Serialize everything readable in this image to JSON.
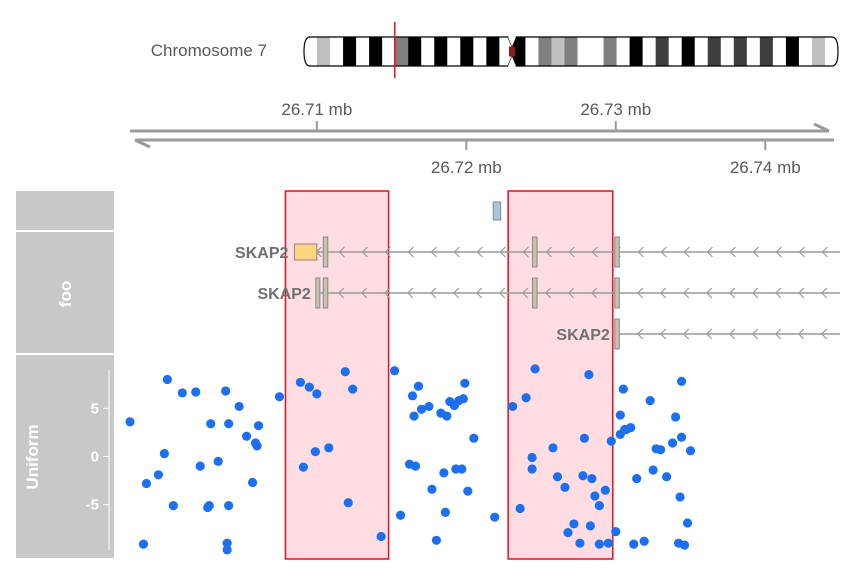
{
  "ideogram": {
    "label": "Chromosome 7",
    "bands": [
      "#ffffff",
      "#bfbfbf",
      "#ffffff",
      "#000000",
      "#ffffff",
      "#000000",
      "#ffffff",
      "#7f7f7f",
      "#000000",
      "#ffffff",
      "#000000",
      "#ffffff",
      "#000000",
      "#ffffff",
      "#000000",
      "#ffffff",
      "#000000",
      "#ffffff",
      "#7f7f7f",
      "#c0c0c0",
      "#7f7f7f",
      "#ffffff",
      "#ffffff",
      "#7f7f7f",
      "#ffffff",
      "#000000",
      "#ffffff",
      "#3f3f3f",
      "#ffffff",
      "#000000",
      "#ffffff",
      "#3f3f3f",
      "#ffffff",
      "#3f3f3f",
      "#ffffff",
      "#3f3f3f",
      "#ffffff",
      "#000000",
      "#ffffff",
      "#bfbfbf",
      "#ffffff"
    ],
    "centromere_color": "#8b1a1a",
    "marker_color": "#e3101c",
    "marker_position_fraction": 0.17
  },
  "axis": {
    "range_mb": [
      26.6975,
      26.745
    ],
    "top_ticks": [
      {
        "value": 26.71,
        "label": "26.71 mb"
      },
      {
        "value": 26.73,
        "label": "26.73 mb"
      }
    ],
    "bottom_ticks": [
      {
        "value": 26.72,
        "label": "26.72 mb"
      },
      {
        "value": 26.74,
        "label": "26.74 mb"
      }
    ],
    "color": "#9a9a9a"
  },
  "highlights": [
    {
      "from": 26.7079,
      "to": 26.7148
    },
    {
      "from": 26.7228,
      "to": 26.7298
    }
  ],
  "highlight_style": {
    "fill": "#ffdde3",
    "stroke": "#e3101c"
  },
  "panels": [
    {
      "title": ""
    },
    {
      "title": "foo"
    },
    {
      "title": "Uniform"
    }
  ],
  "gene_track": {
    "line_color": "#9a9a9a",
    "exon_color": "#c8c0b0",
    "utr_color": "#ffd47e",
    "small_feature": {
      "from": 26.722,
      "to": 26.7225,
      "color": "#a9c4dd"
    },
    "transcripts": [
      {
        "label": "SKAP2",
        "start": 26.7085,
        "end": 26.745,
        "exons": [
          [
            26.7105,
            26.7108
          ],
          [
            26.7245,
            26.7248
          ],
          [
            26.73,
            26.7303
          ]
        ],
        "utrs": [
          [
            26.7085,
            26.71
          ]
        ]
      },
      {
        "label": "SKAP2",
        "start": 26.71,
        "end": 26.745,
        "exons": [
          [
            26.71,
            26.7102
          ],
          [
            26.7105,
            26.7108
          ],
          [
            26.7245,
            26.7248
          ],
          [
            26.73,
            26.7303
          ]
        ],
        "utrs": []
      },
      {
        "label": "SKAP2",
        "start": 26.73,
        "end": 26.745,
        "exons": [
          [
            26.73,
            26.7303
          ]
        ],
        "utrs": []
      }
    ]
  },
  "chart_data": {
    "type": "scatter",
    "title": "",
    "xlabel": "",
    "ylabel": "Uniform",
    "y_ticks": [
      -5,
      0,
      5
    ],
    "ylim": [
      -9.5,
      9.5
    ],
    "point_color": "#1d6ff2",
    "points": [
      {
        "x": 26.6975,
        "y": 3.6
      },
      {
        "x": 26.6984,
        "y": -9.1
      },
      {
        "x": 26.6986,
        "y": -2.8
      },
      {
        "x": 26.6994,
        "y": -1.9
      },
      {
        "x": 26.6998,
        "y": 0.3
      },
      {
        "x": 26.7,
        "y": 8.0
      },
      {
        "x": 26.7004,
        "y": -5.1
      },
      {
        "x": 26.701,
        "y": 6.6
      },
      {
        "x": 26.7019,
        "y": 6.7
      },
      {
        "x": 26.7022,
        "y": -1.0
      },
      {
        "x": 26.7027,
        "y": -5.3
      },
      {
        "x": 26.7028,
        "y": -5.1
      },
      {
        "x": 26.7029,
        "y": 3.4
      },
      {
        "x": 26.7034,
        "y": -0.5
      },
      {
        "x": 26.7039,
        "y": 6.8
      },
      {
        "x": 26.704,
        "y": -9.0
      },
      {
        "x": 26.704,
        "y": -9.7
      },
      {
        "x": 26.7041,
        "y": 3.4
      },
      {
        "x": 26.7041,
        "y": -5.1
      },
      {
        "x": 26.7048,
        "y": 5.2
      },
      {
        "x": 26.7053,
        "y": 2.1
      },
      {
        "x": 26.7057,
        "y": -2.7
      },
      {
        "x": 26.7059,
        "y": 1.4
      },
      {
        "x": 26.706,
        "y": 1.1
      },
      {
        "x": 26.7061,
        "y": 3.2
      },
      {
        "x": 26.7075,
        "y": 6.2
      },
      {
        "x": 26.7089,
        "y": 7.7
      },
      {
        "x": 26.7091,
        "y": -1.1
      },
      {
        "x": 26.7095,
        "y": 7.2
      },
      {
        "x": 26.7099,
        "y": 0.5
      },
      {
        "x": 26.71,
        "y": 6.5
      },
      {
        "x": 26.7108,
        "y": 0.9
      },
      {
        "x": 26.7119,
        "y": 8.8
      },
      {
        "x": 26.7121,
        "y": -4.8
      },
      {
        "x": 26.7124,
        "y": 7.0
      },
      {
        "x": 26.7143,
        "y": -8.3
      },
      {
        "x": 26.7152,
        "y": 8.9
      },
      {
        "x": 26.7156,
        "y": -6.1
      },
      {
        "x": 26.7162,
        "y": -0.8
      },
      {
        "x": 26.7164,
        "y": 6.3
      },
      {
        "x": 26.7165,
        "y": 4.2
      },
      {
        "x": 26.7166,
        "y": -1.0
      },
      {
        "x": 26.7168,
        "y": 7.3
      },
      {
        "x": 26.717,
        "y": 4.9
      },
      {
        "x": 26.7175,
        "y": 5.2
      },
      {
        "x": 26.7177,
        "y": -3.4
      },
      {
        "x": 26.718,
        "y": -8.7
      },
      {
        "x": 26.7183,
        "y": 4.5
      },
      {
        "x": 26.7185,
        "y": -1.7
      },
      {
        "x": 26.7186,
        "y": -5.8
      },
      {
        "x": 26.7187,
        "y": 4.2
      },
      {
        "x": 26.7189,
        "y": 5.7
      },
      {
        "x": 26.7192,
        "y": 5.3
      },
      {
        "x": 26.7193,
        "y": -1.3
      },
      {
        "x": 26.7195,
        "y": 5.8
      },
      {
        "x": 26.7197,
        "y": -1.3
      },
      {
        "x": 26.7198,
        "y": 6.0
      },
      {
        "x": 26.7199,
        "y": 7.6
      },
      {
        "x": 26.7201,
        "y": -3.6
      },
      {
        "x": 26.7205,
        "y": 1.9
      },
      {
        "x": 26.7219,
        "y": -6.3
      },
      {
        "x": 26.7231,
        "y": 5.2
      },
      {
        "x": 26.7236,
        "y": -5.4
      },
      {
        "x": 26.724,
        "y": 6.1
      },
      {
        "x": 26.7244,
        "y": -1.3
      },
      {
        "x": 26.7244,
        "y": -0.1
      },
      {
        "x": 26.7246,
        "y": 9.1
      },
      {
        "x": 26.7258,
        "y": 0.9
      },
      {
        "x": 26.7261,
        "y": -2.1
      },
      {
        "x": 26.7266,
        "y": -3.2
      },
      {
        "x": 26.7268,
        "y": -7.9
      },
      {
        "x": 26.7272,
        "y": -7.0
      },
      {
        "x": 26.7276,
        "y": -9.0
      },
      {
        "x": 26.7278,
        "y": -2.0
      },
      {
        "x": 26.7279,
        "y": 1.9
      },
      {
        "x": 26.7282,
        "y": 8.5
      },
      {
        "x": 26.7283,
        "y": -7.2
      },
      {
        "x": 26.7284,
        "y": -2.3
      },
      {
        "x": 26.7286,
        "y": -4.1
      },
      {
        "x": 26.7289,
        "y": -9.1
      },
      {
        "x": 26.7289,
        "y": -5.1
      },
      {
        "x": 26.7293,
        "y": -3.5
      },
      {
        "x": 26.7295,
        "y": -9.0
      },
      {
        "x": 26.7297,
        "y": 1.6
      },
      {
        "x": 26.73,
        "y": -7.8
      },
      {
        "x": 26.7303,
        "y": 2.3
      },
      {
        "x": 26.7303,
        "y": 4.3
      },
      {
        "x": 26.7305,
        "y": 7.0
      },
      {
        "x": 26.7306,
        "y": 2.8
      },
      {
        "x": 26.7307,
        "y": 2.8
      },
      {
        "x": 26.731,
        "y": 3.0
      },
      {
        "x": 26.7312,
        "y": -9.1
      },
      {
        "x": 26.7314,
        "y": -2.3
      },
      {
        "x": 26.7319,
        "y": -8.8
      },
      {
        "x": 26.7323,
        "y": 5.8
      },
      {
        "x": 26.7325,
        "y": -1.4
      },
      {
        "x": 26.7327,
        "y": 0.8
      },
      {
        "x": 26.733,
        "y": 0.7
      },
      {
        "x": 26.7334,
        "y": -2.1
      },
      {
        "x": 26.7338,
        "y": 1.4
      },
      {
        "x": 26.734,
        "y": 4.1
      },
      {
        "x": 26.7342,
        "y": -9.0
      },
      {
        "x": 26.7343,
        "y": -4.2
      },
      {
        "x": 26.7344,
        "y": 7.8
      },
      {
        "x": 26.7344,
        "y": 2.0
      },
      {
        "x": 26.7346,
        "y": -9.2
      },
      {
        "x": 26.7348,
        "y": -6.9
      },
      {
        "x": 26.735,
        "y": 0.6
      }
    ]
  }
}
